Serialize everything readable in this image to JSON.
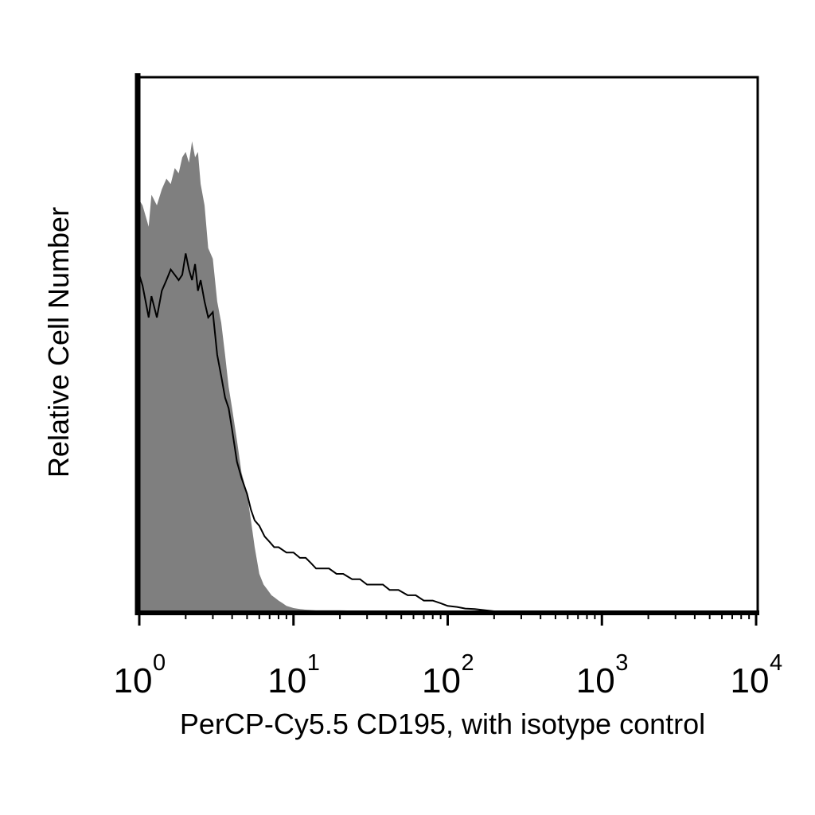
{
  "chart_data": {
    "type": "area",
    "title": "",
    "xlabel": "PerCP-Cy5.5 CD195, with isotype control",
    "ylabel": "Relative Cell Number",
    "xscale": "log",
    "xlim": [
      1,
      10000
    ],
    "ylim": [
      0,
      1
    ],
    "grid": false,
    "legend": "none",
    "xticks": [
      {
        "value": 1,
        "base": "10",
        "exp": "0"
      },
      {
        "value": 10,
        "base": "10",
        "exp": "1"
      },
      {
        "value": 100,
        "base": "10",
        "exp": "2"
      },
      {
        "value": 1000,
        "base": "10",
        "exp": "3"
      },
      {
        "value": 10000,
        "base": "10",
        "exp": "4"
      }
    ],
    "series": [
      {
        "role": "isotype control (filled)",
        "color": "#7f7f7f",
        "x": [
          1.0,
          1.05,
          1.1,
          1.15,
          1.2,
          1.3,
          1.4,
          1.5,
          1.6,
          1.7,
          1.8,
          1.9,
          2.0,
          2.1,
          2.2,
          2.3,
          2.4,
          2.5,
          2.65,
          2.8,
          3.0,
          3.2,
          3.4,
          3.6,
          3.8,
          4.0,
          4.3,
          4.6,
          5.0,
          5.3,
          5.6,
          6.0,
          6.4,
          6.8,
          7.2,
          7.6,
          8.0,
          8.5,
          9.0,
          9.5,
          10.0,
          11.0,
          12.0,
          14.0,
          16.0,
          20.0,
          25.0,
          35.0,
          50.0
        ],
        "y": [
          0.77,
          0.76,
          0.74,
          0.72,
          0.78,
          0.76,
          0.79,
          0.81,
          0.8,
          0.83,
          0.82,
          0.85,
          0.86,
          0.84,
          0.88,
          0.85,
          0.86,
          0.8,
          0.76,
          0.68,
          0.66,
          0.58,
          0.54,
          0.48,
          0.42,
          0.38,
          0.32,
          0.26,
          0.22,
          0.17,
          0.12,
          0.07,
          0.05,
          0.04,
          0.03,
          0.025,
          0.02,
          0.015,
          0.01,
          0.008,
          0.006,
          0.004,
          0.003,
          0.002,
          0.002,
          0.002,
          0.001,
          0.001,
          0.0
        ]
      },
      {
        "role": "CD195 stained (outline)",
        "color": "#000000",
        "x": [
          1.0,
          1.05,
          1.1,
          1.15,
          1.2,
          1.3,
          1.4,
          1.5,
          1.6,
          1.7,
          1.8,
          1.9,
          2.0,
          2.1,
          2.2,
          2.3,
          2.4,
          2.5,
          2.65,
          2.8,
          3.0,
          3.2,
          3.4,
          3.6,
          3.8,
          4.0,
          4.3,
          4.6,
          5.0,
          5.3,
          5.6,
          6.0,
          6.5,
          7.0,
          7.5,
          8.0,
          9.0,
          10.0,
          11.0,
          12.0,
          13.0,
          14.0,
          15.0,
          17.0,
          19.0,
          21.0,
          24.0,
          27.0,
          30.0,
          34.0,
          38.0,
          42.0,
          48.0,
          55.0,
          62.0,
          70.0,
          80.0,
          90.0,
          100.0,
          115.0,
          130.0,
          150.0,
          175.0,
          200.0
        ],
        "y": [
          0.63,
          0.61,
          0.58,
          0.55,
          0.59,
          0.55,
          0.6,
          0.62,
          0.64,
          0.63,
          0.62,
          0.63,
          0.67,
          0.64,
          0.62,
          0.65,
          0.6,
          0.62,
          0.58,
          0.55,
          0.56,
          0.48,
          0.44,
          0.4,
          0.38,
          0.34,
          0.28,
          0.25,
          0.22,
          0.19,
          0.17,
          0.16,
          0.14,
          0.13,
          0.12,
          0.12,
          0.11,
          0.11,
          0.1,
          0.1,
          0.09,
          0.08,
          0.08,
          0.08,
          0.07,
          0.07,
          0.06,
          0.06,
          0.05,
          0.05,
          0.05,
          0.04,
          0.04,
          0.03,
          0.03,
          0.02,
          0.02,
          0.015,
          0.01,
          0.008,
          0.005,
          0.004,
          0.002,
          0.0
        ]
      }
    ]
  }
}
